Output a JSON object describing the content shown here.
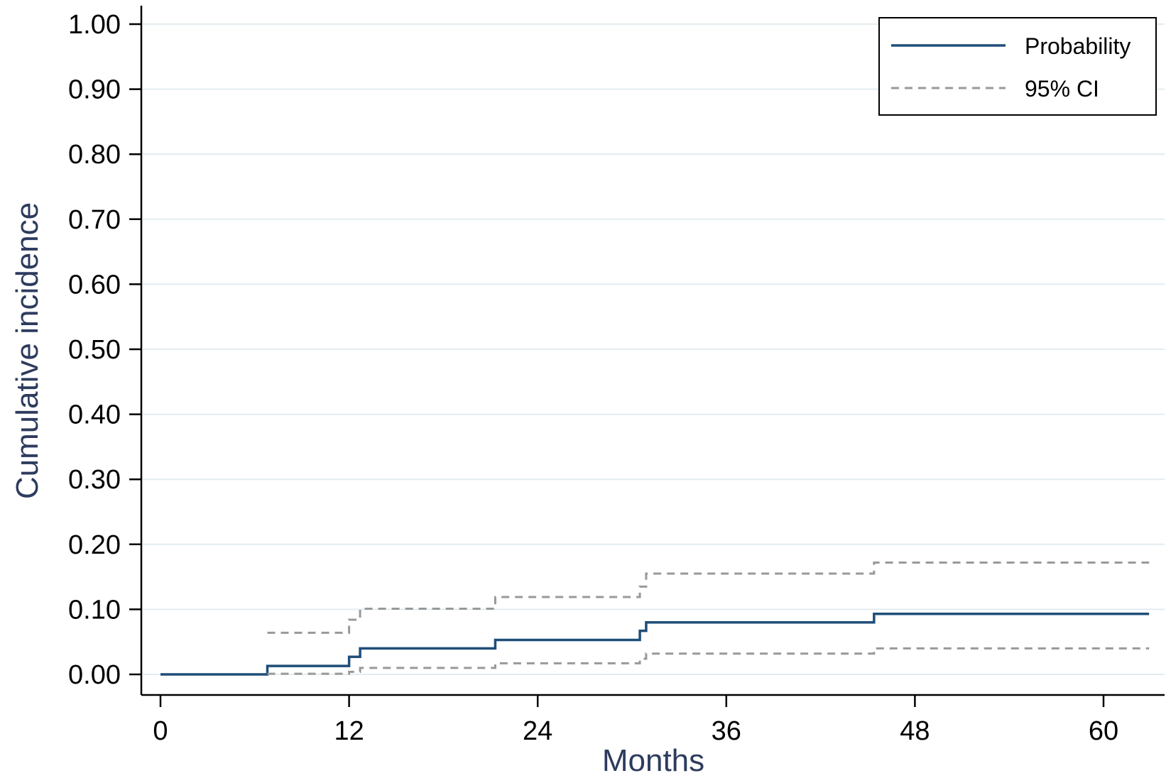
{
  "chart_data": {
    "type": "line",
    "step": true,
    "title": "",
    "xlabel": "Months",
    "ylabel": "Cumulative incidence",
    "xlim": [
      0,
      63
    ],
    "ylim": [
      0,
      1
    ],
    "x_ticks": [
      0,
      12,
      24,
      36,
      48,
      60
    ],
    "y_ticks": [
      0,
      0.1,
      0.2,
      0.3,
      0.4,
      0.5,
      0.6,
      0.7,
      0.8,
      0.9,
      1.0
    ],
    "x_tick_labels": [
      "0",
      "12",
      "24",
      "36",
      "48",
      "60"
    ],
    "y_tick_labels": [
      "0.00",
      "0.10",
      "0.20",
      "0.30",
      "0.40",
      "0.50",
      "0.60",
      "0.70",
      "0.80",
      "0.90",
      "1.00"
    ],
    "grid": "horizontal",
    "legend_position": "top-right",
    "series": [
      {
        "name": "Probability",
        "style": "solid",
        "color": "#1f4e79",
        "points": [
          [
            0,
            0
          ],
          [
            6.8,
            0.013
          ],
          [
            12.0,
            0.027
          ],
          [
            12.7,
            0.04
          ],
          [
            21.3,
            0.053
          ],
          [
            30.5,
            0.067
          ],
          [
            30.9,
            0.08
          ],
          [
            45.4,
            0.093
          ],
          [
            62.9,
            0.093
          ]
        ]
      },
      {
        "name": "95% CI",
        "style": "dashed",
        "color": "#999999",
        "points": [
          [
            6.8,
            0.064
          ],
          [
            12.0,
            0.084
          ],
          [
            12.7,
            0.101
          ],
          [
            21.3,
            0.119
          ],
          [
            30.5,
            0.135
          ],
          [
            30.9,
            0.155
          ],
          [
            45.4,
            0.172
          ],
          [
            62.9,
            0.172
          ]
        ]
      },
      {
        "name": "95% CI",
        "style": "dashed",
        "color": "#999999",
        "show_in_legend": false,
        "points": [
          [
            6.8,
            0.001
          ],
          [
            12.0,
            0.004
          ],
          [
            12.7,
            0.01
          ],
          [
            21.3,
            0.017
          ],
          [
            30.5,
            0.024
          ],
          [
            30.9,
            0.032
          ],
          [
            45.4,
            0.04
          ],
          [
            62.9,
            0.04
          ]
        ]
      }
    ]
  },
  "colors": {
    "axis_title": "#2d3b5e",
    "gridline": "#e3ecf0",
    "axis": "#000000"
  }
}
